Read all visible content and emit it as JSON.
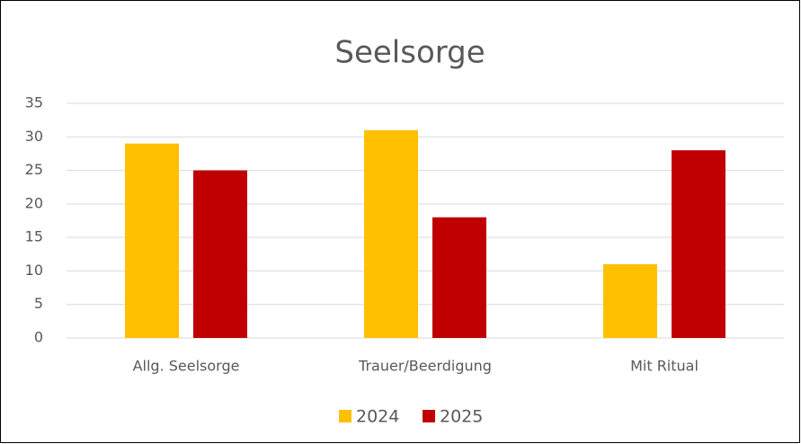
{
  "chart_data": {
    "type": "bar",
    "title": "Seelsorge",
    "categories": [
      "Allg. Seelsorge",
      "Trauer/Beerdigung",
      "Mit Ritual"
    ],
    "series": [
      {
        "name": "2024",
        "color": "#ffc000",
        "values": [
          29,
          31,
          11
        ]
      },
      {
        "name": "2025",
        "color": "#c00000",
        "values": [
          25,
          18,
          28
        ]
      }
    ],
    "ylim": [
      0,
      35
    ],
    "yticks": [
      0,
      5,
      10,
      15,
      20,
      25,
      30,
      35
    ],
    "grid": true,
    "legend": "bottom"
  }
}
